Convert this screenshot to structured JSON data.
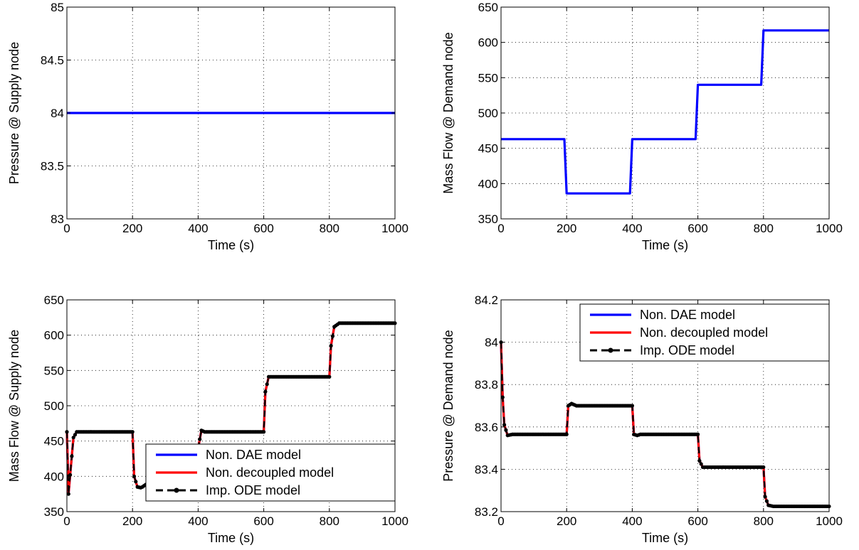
{
  "chart_data": [
    {
      "type": "line",
      "xlabel": "Time (s)",
      "ylabel": "Pressure @ Supply node",
      "xlim": [
        0,
        1000
      ],
      "ylim": [
        83,
        85
      ],
      "xticks": [
        0,
        200,
        400,
        600,
        800,
        1000
      ],
      "yticks": [
        83,
        83.5,
        84,
        84.5,
        85
      ],
      "ytick_labels": [
        "83",
        "83.5",
        "84",
        "84.5",
        "85"
      ],
      "grid": true,
      "legend": null,
      "series": [
        {
          "color": "#0000ff",
          "style": "solid",
          "points": [
            [
              0,
              84
            ],
            [
              1000,
              84
            ]
          ]
        }
      ]
    },
    {
      "type": "line",
      "xlabel": "Time (s)",
      "ylabel": "Mass Flow  @ Demand node",
      "xlim": [
        0,
        1000
      ],
      "ylim": [
        350,
        650
      ],
      "xticks": [
        0,
        200,
        400,
        600,
        800,
        1000
      ],
      "yticks": [
        350,
        400,
        450,
        500,
        550,
        600,
        650
      ],
      "ytick_labels": [
        "350",
        "400",
        "450",
        "500",
        "550",
        "600",
        "650"
      ],
      "grid": true,
      "legend": null,
      "series": [
        {
          "color": "#0000ff",
          "style": "solid",
          "points": [
            [
              0,
              463
            ],
            [
              193,
              463
            ],
            [
              200,
              386
            ],
            [
              393,
              386
            ],
            [
              400,
              463
            ],
            [
              593,
              463
            ],
            [
              600,
              540
            ],
            [
              793,
              540
            ],
            [
              800,
              617
            ],
            [
              1000,
              617
            ]
          ]
        }
      ]
    },
    {
      "type": "line",
      "xlabel": "Time (s)",
      "ylabel": "Mass Flow @ Supply node",
      "xlim": [
        0,
        1000
      ],
      "ylim": [
        350,
        650
      ],
      "xticks": [
        0,
        200,
        400,
        600,
        800,
        1000
      ],
      "yticks": [
        350,
        400,
        450,
        500,
        550,
        600,
        650
      ],
      "ytick_labels": [
        "350",
        "400",
        "450",
        "500",
        "550",
        "600",
        "650"
      ],
      "grid": true,
      "legend": "bottom-right",
      "series": [
        {
          "name": "Non. DAE model",
          "color": "#0000ff",
          "style": "solid",
          "points": [
            [
              0,
              463
            ],
            [
              5,
              375
            ],
            [
              10,
              402
            ],
            [
              20,
              455
            ],
            [
              30,
              463
            ],
            [
              200,
              463
            ],
            [
              205,
              400
            ],
            [
              215,
              385
            ],
            [
              225,
              384
            ],
            [
              230,
              385
            ],
            [
              400,
              440
            ],
            [
              410,
              465
            ],
            [
              420,
              463
            ],
            [
              600,
              463
            ],
            [
              605,
              520
            ],
            [
              615,
              541
            ],
            [
              800,
              541
            ],
            [
              805,
              585
            ],
            [
              815,
              612
            ],
            [
              830,
              617
            ],
            [
              1000,
              617
            ]
          ]
        },
        {
          "name": "Non. decoupled model",
          "color": "#ff0000",
          "style": "solid",
          "points": [
            [
              0,
              463
            ],
            [
              5,
              375
            ],
            [
              10,
              402
            ],
            [
              20,
              455
            ],
            [
              30,
              463
            ],
            [
              200,
              463
            ],
            [
              205,
              400
            ],
            [
              215,
              385
            ],
            [
              225,
              384
            ],
            [
              230,
              385
            ],
            [
              400,
              440
            ],
            [
              410,
              465
            ],
            [
              420,
              463
            ],
            [
              600,
              463
            ],
            [
              605,
              520
            ],
            [
              615,
              541
            ],
            [
              800,
              541
            ],
            [
              805,
              585
            ],
            [
              815,
              612
            ],
            [
              830,
              617
            ],
            [
              1000,
              617
            ]
          ]
        },
        {
          "name": "Imp.  ODE model",
          "color": "#000000",
          "style": "dashed",
          "markers": true,
          "points": [
            [
              0,
              463
            ],
            [
              5,
              375
            ],
            [
              10,
              402
            ],
            [
              20,
              455
            ],
            [
              30,
              463
            ],
            [
              200,
              463
            ],
            [
              205,
              400
            ],
            [
              215,
              385
            ],
            [
              225,
              384
            ],
            [
              230,
              385
            ],
            [
              400,
              440
            ],
            [
              410,
              465
            ],
            [
              420,
              463
            ],
            [
              600,
              463
            ],
            [
              605,
              520
            ],
            [
              615,
              541
            ],
            [
              800,
              541
            ],
            [
              805,
              585
            ],
            [
              815,
              612
            ],
            [
              830,
              617
            ],
            [
              1000,
              617
            ]
          ]
        }
      ]
    },
    {
      "type": "line",
      "xlabel": "Time (s)",
      "ylabel": "Pressure @ Demand node",
      "xlim": [
        0,
        1000
      ],
      "ylim": [
        83.2,
        84.2
      ],
      "xticks": [
        0,
        200,
        400,
        600,
        800,
        1000
      ],
      "yticks": [
        83.2,
        83.4,
        83.6,
        83.8,
        84,
        84.2
      ],
      "ytick_labels": [
        "83.2",
        "83.4",
        "83.6",
        "83.8",
        "84",
        "84.2"
      ],
      "grid": true,
      "legend": "top-right",
      "series": [
        {
          "name": "Non. DAE model",
          "color": "#0000ff",
          "style": "solid",
          "points": [
            [
              0,
              84.0
            ],
            [
              5,
              83.74
            ],
            [
              10,
              83.61
            ],
            [
              20,
              83.56
            ],
            [
              35,
              83.565
            ],
            [
              200,
              83.565
            ],
            [
              205,
              83.7
            ],
            [
              215,
              83.71
            ],
            [
              230,
              83.7
            ],
            [
              400,
              83.7
            ],
            [
              405,
              83.565
            ],
            [
              415,
              83.56
            ],
            [
              425,
              83.565
            ],
            [
              600,
              83.565
            ],
            [
              605,
              83.44
            ],
            [
              615,
              83.41
            ],
            [
              625,
              83.41
            ],
            [
              800,
              83.41
            ],
            [
              805,
              83.27
            ],
            [
              815,
              83.23
            ],
            [
              830,
              83.225
            ],
            [
              1000,
              83.225
            ]
          ]
        },
        {
          "name": "Non. decoupled model",
          "color": "#ff0000",
          "style": "solid",
          "points": [
            [
              0,
              84.0
            ],
            [
              5,
              83.74
            ],
            [
              10,
              83.61
            ],
            [
              20,
              83.56
            ],
            [
              35,
              83.565
            ],
            [
              200,
              83.565
            ],
            [
              205,
              83.7
            ],
            [
              215,
              83.71
            ],
            [
              230,
              83.7
            ],
            [
              400,
              83.7
            ],
            [
              405,
              83.565
            ],
            [
              415,
              83.56
            ],
            [
              425,
              83.565
            ],
            [
              600,
              83.565
            ],
            [
              605,
              83.44
            ],
            [
              615,
              83.41
            ],
            [
              625,
              83.41
            ],
            [
              800,
              83.41
            ],
            [
              805,
              83.27
            ],
            [
              815,
              83.23
            ],
            [
              830,
              83.225
            ],
            [
              1000,
              83.225
            ]
          ]
        },
        {
          "name": "Imp.  ODE model",
          "color": "#000000",
          "style": "dashed",
          "markers": true,
          "points": [
            [
              0,
              84.0
            ],
            [
              5,
              83.74
            ],
            [
              10,
              83.61
            ],
            [
              20,
              83.56
            ],
            [
              35,
              83.565
            ],
            [
              200,
              83.565
            ],
            [
              205,
              83.7
            ],
            [
              215,
              83.71
            ],
            [
              230,
              83.7
            ],
            [
              400,
              83.7
            ],
            [
              405,
              83.565
            ],
            [
              415,
              83.56
            ],
            [
              425,
              83.565
            ],
            [
              600,
              83.565
            ],
            [
              605,
              83.44
            ],
            [
              615,
              83.41
            ],
            [
              625,
              83.41
            ],
            [
              800,
              83.41
            ],
            [
              805,
              83.27
            ],
            [
              815,
              83.23
            ],
            [
              830,
              83.225
            ],
            [
              1000,
              83.225
            ]
          ]
        }
      ]
    }
  ]
}
